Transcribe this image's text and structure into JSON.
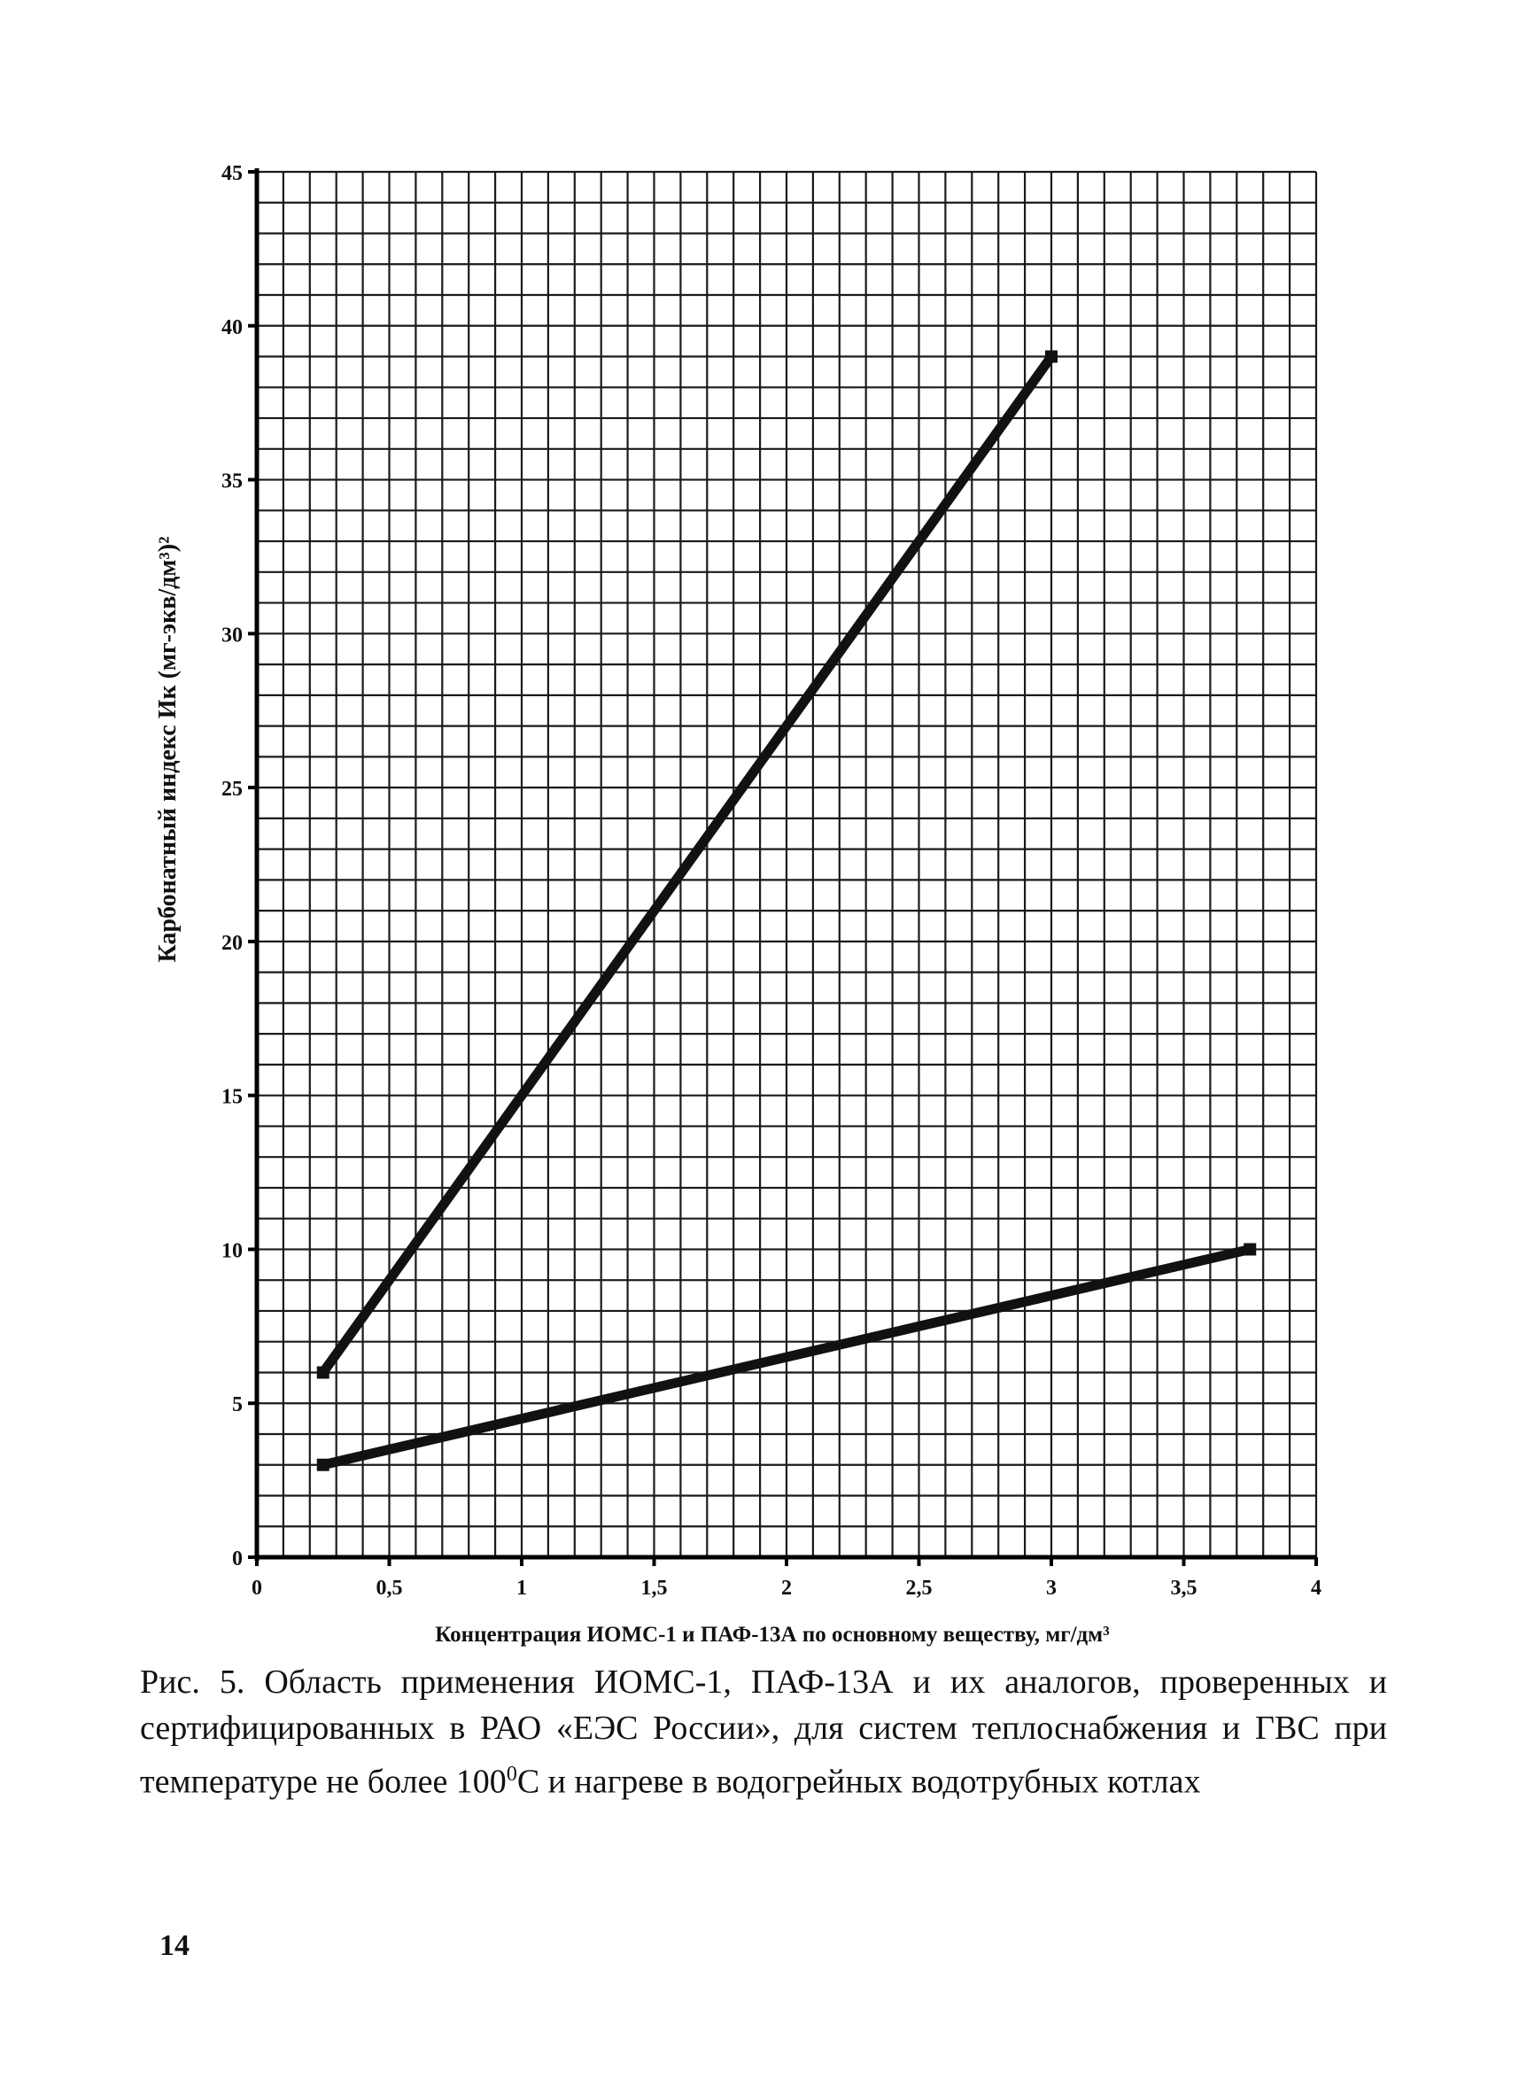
{
  "chart_data": {
    "type": "line",
    "xlabel": "Концентрация ИОМС-1 и ПАФ-13А по основному веществу, мг/дм³",
    "ylabel": "Карбонатный индекс Ик (мг-экв/дм³)²",
    "xlim": [
      0,
      4
    ],
    "ylim": [
      0,
      45
    ],
    "x_ticks": [
      "0",
      "0,5",
      "1",
      "1,5",
      "2",
      "2,5",
      "3",
      "3,5",
      "4"
    ],
    "y_ticks": [
      "0",
      "5",
      "10",
      "15",
      "20",
      "25",
      "30",
      "35",
      "40",
      "45"
    ],
    "grid": true,
    "legend": "none",
    "series": [
      {
        "points": [
          [
            0.25,
            6
          ],
          [
            3.0,
            39
          ]
        ],
        "color": "#111111"
      },
      {
        "points": [
          [
            0.25,
            3
          ],
          [
            3.75,
            10
          ]
        ],
        "color": "#111111"
      }
    ]
  },
  "caption": {
    "prefix": "Рис. 5. Область применения ИОМС-1, ПАФ-13А и их аналогов, проверенных и сертифицированных в РАО «ЕЭС России», для систем теплоснабжения и ГВС при температуре не более 100",
    "superscript": "0",
    "suffix": "С и нагреве в водогрейных водотрубных котлах"
  },
  "page_number": "14"
}
